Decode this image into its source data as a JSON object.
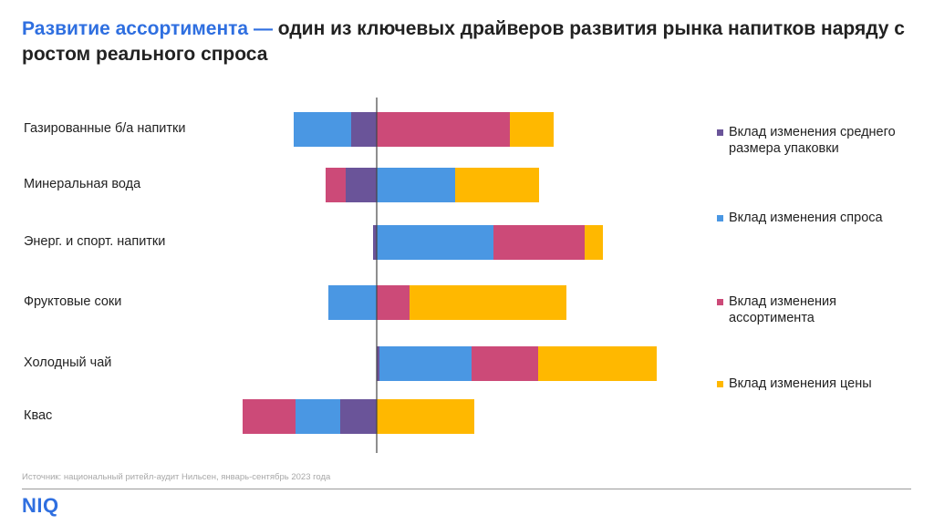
{
  "header": {
    "title_accent": "Развитие ассортимента —",
    "title_rest": " один из ключевых драйверов развития рынка напитков наряду с ростом реального спроса"
  },
  "footer": {
    "source": "Источник: национальный ритейл-аудит Нильсен, январь-сентябрь 2023 года",
    "logo": "NIQ"
  },
  "colors": {
    "pack_size": "#6a5499",
    "demand": "#4a97e3",
    "assortment": "#cc4a78",
    "price": "#ffb800",
    "axis": "#444444"
  },
  "legend": [
    {
      "key": "pack_size",
      "label": "Вклад изменения среднего размера упаковки"
    },
    {
      "key": "demand",
      "label": "Вклад изменения спроса"
    },
    {
      "key": "assortment",
      "label": "Вклад изменения ассортимента"
    },
    {
      "key": "price",
      "label": "Вклад изменения цены"
    }
  ],
  "chart_data": {
    "type": "bar",
    "orientation": "horizontal",
    "stacked": true,
    "title": "",
    "xlabel": "",
    "ylabel": "",
    "xlim": [
      -15,
      31
    ],
    "categories": [
      "Газированные б/а напитки",
      "Минеральная  вода",
      "Энерг. и спорт. напитки",
      "Фруктовые соки",
      "Холодный чай",
      "Квас"
    ],
    "series": [
      {
        "name": "Вклад изменения среднего размера упаковки",
        "key": "pack_size",
        "values": [
          -2.8,
          -3.4,
          -0.4,
          0,
          0.3,
          -4.0
        ]
      },
      {
        "name": "Вклад изменения спроса",
        "key": "demand",
        "values": [
          -6.3,
          8.6,
          12.8,
          -5.3,
          10.1,
          -4.9
        ]
      },
      {
        "name": "Вклад изменения ассортимента",
        "key": "assortment",
        "values": [
          14.6,
          -2.2,
          10.0,
          3.6,
          7.3,
          -5.8
        ]
      },
      {
        "name": "Вклад изменения цены",
        "key": "price",
        "values": [
          4.8,
          9.2,
          2.0,
          17.2,
          13.0,
          10.7
        ]
      }
    ],
    "grid": false,
    "legend_position": "right"
  }
}
